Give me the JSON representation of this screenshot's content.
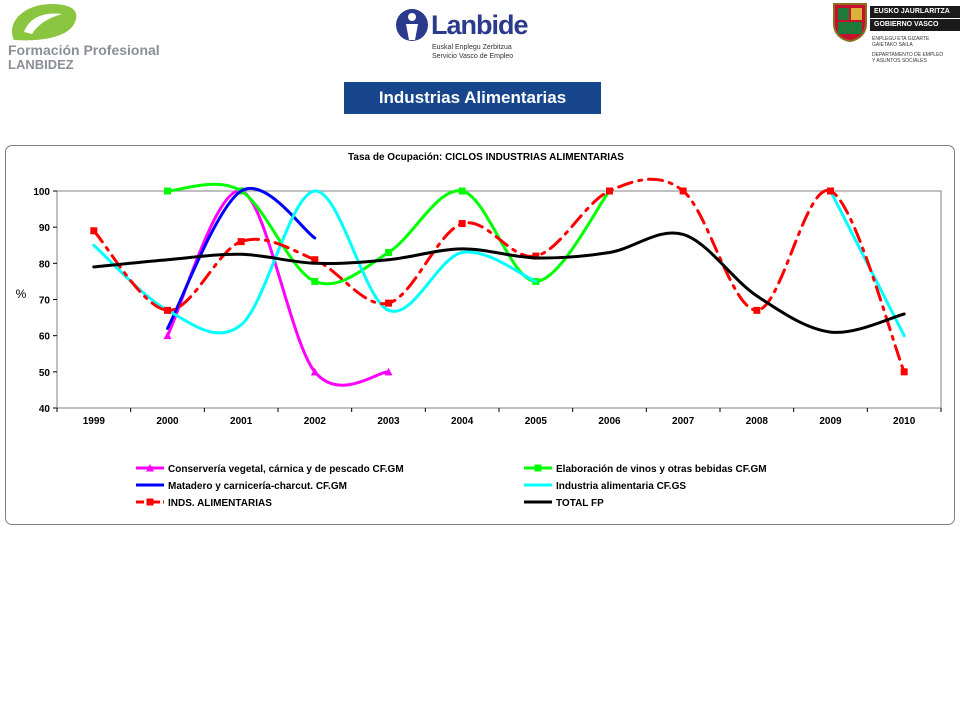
{
  "header": {
    "logo_left": {
      "line1": "Formación Profesional",
      "line2": "LANBIDEZ",
      "icon": "fp-leaf-logo-icon",
      "color": "#8ac53f"
    },
    "logo_center": {
      "name": "Lanbide",
      "sub1": "Euskal Enplegu Zerbitzua",
      "sub2": "Servicio Vasco de Empleo",
      "icon": "lanbide-figure-logo-icon",
      "color": "#2a3a8c"
    },
    "logo_right": {
      "bar1": "EUSKO JAURLARITZA",
      "bar2": "GOBIERNO VASCO",
      "small1": "ENPLEGU ETA GIZARTE",
      "small2": "GAIETAKO SAILA",
      "small3": "DEPARTAMENTO DE EMPLEO",
      "small4": "Y ASUNTOS SOCIALES",
      "icon": "basque-coat-of-arms-icon"
    }
  },
  "banner": {
    "title": "Industrias Alimentarias",
    "color": "#17468c"
  },
  "chart_data": {
    "type": "line",
    "title": "Tasa de Ocupación: CICLOS INDUSTRIAS ALIMENTARIAS",
    "ylabel": "%",
    "xlabel": "",
    "ylim": [
      40,
      100
    ],
    "yticks": [
      40,
      50,
      60,
      70,
      80,
      90,
      100
    ],
    "categories": [
      "1999",
      "2000",
      "2001",
      "2002",
      "2003",
      "2004",
      "2005",
      "2006",
      "2007",
      "2008",
      "2009",
      "2010"
    ],
    "grid": false,
    "legend_position": "bottom",
    "series": [
      {
        "name": "Conservería vegetal, cárnica y de pescado CF.GM",
        "color": "#ff00ff",
        "marker": "triangle",
        "dash": "solid",
        "values": [
          null,
          60,
          100,
          50,
          50,
          null,
          null,
          null,
          null,
          null,
          null,
          null
        ]
      },
      {
        "name": "Elaboración de vinos y otras bebidas CF.GM",
        "color": "#00ff00",
        "marker": "square",
        "dash": "solid",
        "values": [
          null,
          100,
          100,
          75,
          83,
          100,
          75,
          100,
          null,
          null,
          null,
          null
        ]
      },
      {
        "name": "Matadero y carnicería-charcut. CF.GM",
        "color": "#0000ff",
        "marker": "none",
        "dash": "solid",
        "values": [
          null,
          62,
          100,
          87,
          null,
          null,
          null,
          null,
          null,
          null,
          null,
          null
        ]
      },
      {
        "name": "Industria alimentaria CF.GS",
        "color": "#00ffff",
        "marker": "none",
        "dash": "solid",
        "values": [
          85,
          67,
          63,
          100,
          67,
          83,
          75,
          null,
          null,
          null,
          100,
          60
        ]
      },
      {
        "name": "INDS. ALIMENTARIAS",
        "color": "#ff0000",
        "marker": "square",
        "dash": "dashdot",
        "values": [
          89,
          67,
          86,
          81,
          69,
          91,
          82,
          100,
          100,
          67,
          100,
          50
        ]
      },
      {
        "name": "TOTAL FP",
        "color": "#000000",
        "marker": "none",
        "dash": "solid",
        "values": [
          79,
          81,
          82.5,
          80,
          81,
          84,
          81.5,
          83,
          88,
          71,
          61,
          66
        ]
      }
    ]
  }
}
